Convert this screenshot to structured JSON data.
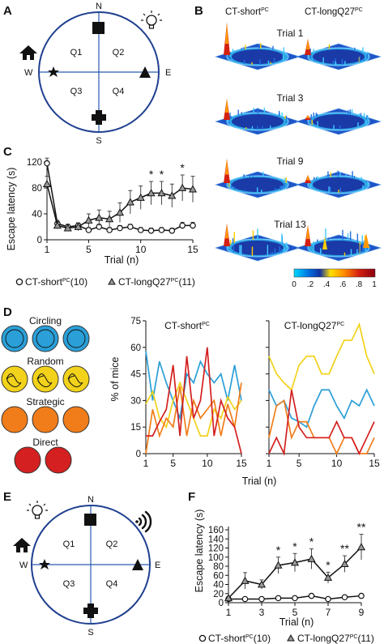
{
  "panels": {
    "A": "A",
    "B": "B",
    "C": "C",
    "D": "D",
    "E": "E",
    "F": "F"
  },
  "maze_A": {
    "directions": {
      "N": "N",
      "S": "S",
      "E": "E",
      "W": "W"
    },
    "quadrants": [
      "Q1",
      "Q2",
      "Q3",
      "Q4"
    ],
    "icons": [
      "lightbulb-icon",
      "home-icon",
      "star-icon",
      "square-icon",
      "triangle-icon",
      "cross-icon"
    ]
  },
  "heatmaps_B": {
    "col1_title": "CT-short",
    "col1_sup": "PC",
    "col2_title": "CT-longQ27",
    "col2_sup": "PC",
    "trials": [
      "Trial 1",
      "Trial 3",
      "Trial 9",
      "Trial 13"
    ],
    "colorbar_ticks": [
      ".2",
      ".4",
      ".6",
      ".8",
      "1"
    ],
    "colorbar_zero": "0",
    "colorbar_colors": [
      "#00c0ff",
      "#0040c0",
      "#ffd000",
      "#ff8000",
      "#d02000",
      "#900010"
    ]
  },
  "chart_C": {
    "ylabel": "Escape latency (s)",
    "xlabel": "Trial (n)",
    "xticks": [
      "1",
      "5",
      "10",
      "15"
    ],
    "yticks": [
      "0",
      "40",
      "80",
      "120"
    ],
    "stars": [
      "*",
      "*",
      "*"
    ],
    "legend": {
      "short": "CT-short",
      "short_sup": "PC",
      "short_n": "(10)",
      "long": "CT-longQ27",
      "long_sup": "PC",
      "long_n": "(11)"
    }
  },
  "strategies_D": {
    "labels": [
      "Circling",
      "Random",
      "Strategic",
      "Direct"
    ],
    "colors": {
      "Circling": "#2a9fd8",
      "Random": "#f2d21a",
      "Strategic": "#f07d1a",
      "Direct": "#d42020"
    },
    "ylabel": "% of mice",
    "xlabel": "Trial (n)",
    "title_left": "CT-short",
    "title_left_sup": "PC",
    "title_right": "CT-longQ27",
    "title_right_sup": "PC",
    "yticks": [
      "0",
      "15",
      "30",
      "45",
      "60",
      "75"
    ],
    "xticks": [
      "1",
      "5",
      "10",
      "15"
    ]
  },
  "maze_E": {
    "directions": {
      "N": "N",
      "S": "S",
      "E": "E",
      "W": "W"
    },
    "quadrants": [
      "Q1",
      "Q2",
      "Q3",
      "Q4"
    ],
    "icons": [
      "lightbulb-icon",
      "sound-icon",
      "home-icon",
      "star-icon",
      "square-icon",
      "triangle-icon",
      "cross-icon"
    ]
  },
  "chart_F": {
    "ylabel": "Escape latency (s)",
    "xlabel": "Trial (n)",
    "xticks": [
      "1",
      "3",
      "5",
      "7",
      "9"
    ],
    "yticks": [
      "0",
      "20",
      "40",
      "60",
      "80",
      "100",
      "120",
      "140",
      "160"
    ],
    "stars": [
      "*",
      "*",
      "*",
      "*",
      "**",
      "**"
    ],
    "legend": {
      "short": "CT-short",
      "short_sup": "PC",
      "short_n": "(10)",
      "long": "CT-longQ27",
      "long_sup": "PC",
      "long_n": "(11)"
    }
  },
  "chart_data": [
    {
      "type": "line",
      "panel": "C",
      "x": [
        1,
        2,
        3,
        4,
        5,
        6,
        7,
        8,
        9,
        10,
        11,
        12,
        13,
        14,
        15
      ],
      "xlim": [
        1,
        15
      ],
      "ylim": [
        0,
        120
      ],
      "series": [
        {
          "name": "CT-short(10)",
          "marker": "circle",
          "values": [
            118,
            25,
            20,
            22,
            15,
            20,
            15,
            18,
            20,
            15,
            14,
            15,
            14,
            22,
            22
          ],
          "err": [
            8,
            5,
            4,
            4,
            4,
            4,
            4,
            4,
            4,
            4,
            4,
            4,
            4,
            5,
            5
          ]
        },
        {
          "name": "CT-longQ27(11)",
          "marker": "triangle",
          "values": [
            86,
            22,
            18,
            20,
            30,
            34,
            32,
            42,
            58,
            65,
            72,
            72,
            68,
            80,
            78
          ],
          "err": [
            12,
            5,
            5,
            6,
            10,
            12,
            12,
            15,
            18,
            18,
            18,
            18,
            18,
            20,
            20
          ]
        }
      ],
      "significance_trials": [
        11,
        12,
        14
      ]
    },
    {
      "type": "line",
      "panel": "D-left",
      "title": "CT-short",
      "x": [
        1,
        2,
        3,
        4,
        5,
        6,
        7,
        8,
        9,
        10,
        11,
        12,
        13,
        14,
        15
      ],
      "ylim": [
        0,
        75
      ],
      "series": [
        {
          "name": "Circling",
          "values": [
            58,
            30,
            52,
            40,
            30,
            20,
            45,
            40,
            52,
            45,
            40,
            45,
            30,
            50,
            30
          ]
        },
        {
          "name": "Random",
          "values": [
            28,
            35,
            20,
            15,
            30,
            40,
            30,
            20,
            10,
            10,
            25,
            20,
            32,
            25,
            30
          ]
        },
        {
          "name": "Strategic",
          "values": [
            0,
            25,
            10,
            20,
            15,
            38,
            10,
            30,
            20,
            25,
            30,
            10,
            28,
            15,
            40
          ]
        },
        {
          "name": "Direct",
          "values": [
            10,
            10,
            18,
            25,
            50,
            10,
            55,
            20,
            30,
            60,
            10,
            30,
            20,
            15,
            0
          ]
        }
      ]
    },
    {
      "type": "line",
      "panel": "D-right",
      "title": "CT-longQ27",
      "x": [
        1,
        2,
        3,
        4,
        5,
        6,
        7,
        8,
        9,
        10,
        11,
        12,
        13,
        14,
        15
      ],
      "ylim": [
        0,
        75
      ],
      "series": [
        {
          "name": "Circling",
          "values": [
            36,
            27,
            30,
            20,
            18,
            15,
            27,
            36,
            36,
            27,
            20,
            30,
            27,
            36,
            27
          ]
        },
        {
          "name": "Random",
          "values": [
            55,
            45,
            40,
            36,
            50,
            55,
            55,
            45,
            45,
            55,
            64,
            64,
            73,
            55,
            45
          ]
        },
        {
          "name": "Strategic",
          "values": [
            9,
            27,
            30,
            9,
            18,
            18,
            9,
            9,
            9,
            0,
            9,
            9,
            0,
            0,
            9
          ]
        },
        {
          "name": "Direct",
          "values": [
            0,
            9,
            0,
            36,
            15,
            9,
            9,
            9,
            9,
            18,
            9,
            9,
            0,
            9,
            18
          ]
        }
      ]
    },
    {
      "type": "line",
      "panel": "F",
      "x": [
        1,
        2,
        3,
        4,
        5,
        6,
        7,
        8,
        9
      ],
      "xlim": [
        1,
        9
      ],
      "ylim": [
        0,
        160
      ],
      "series": [
        {
          "name": "CT-short(10)",
          "marker": "circle",
          "values": [
            8,
            8,
            8,
            10,
            10,
            15,
            8,
            12,
            15
          ],
          "err": [
            2,
            2,
            2,
            3,
            3,
            4,
            2,
            3,
            3
          ]
        },
        {
          "name": "CT-longQ27(11)",
          "marker": "triangle",
          "values": [
            10,
            48,
            40,
            82,
            88,
            96,
            55,
            85,
            122
          ],
          "err": [
            4,
            18,
            10,
            18,
            20,
            22,
            12,
            18,
            28
          ]
        }
      ],
      "significance_trials": [
        4,
        5,
        6,
        7,
        8,
        9
      ]
    }
  ]
}
